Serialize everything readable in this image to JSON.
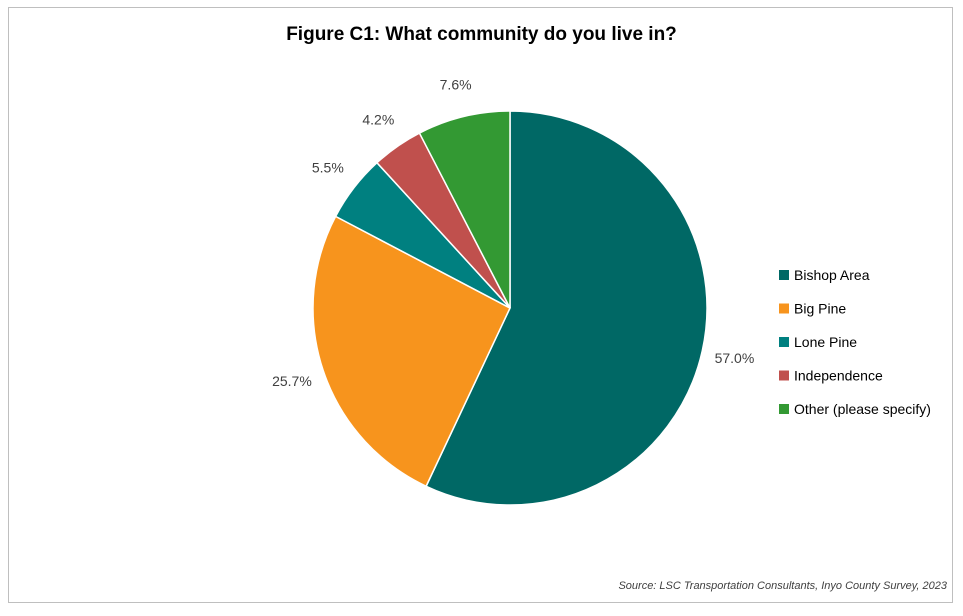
{
  "chart_data": {
    "type": "pie",
    "title": "Figure C1: What community do you live in?",
    "slices": [
      {
        "label": "Bishop Area",
        "value": 57.0,
        "value_label": "57.0%",
        "color": "#006865"
      },
      {
        "label": "Big Pine",
        "value": 25.7,
        "value_label": "25.7%",
        "color": "#f7941d"
      },
      {
        "label": "Lone Pine",
        "value": 5.5,
        "value_label": "5.5%",
        "color": "#008080"
      },
      {
        "label": "Independence",
        "value": 4.2,
        "value_label": "4.2%",
        "color": "#c0504d"
      },
      {
        "label": "Other (please specify)",
        "value": 7.6,
        "value_label": "7.6%",
        "color": "#339933"
      }
    ],
    "legend_position": "right",
    "source": "Source: LSC Transportation Consultants, Inyo County Survey, 2023"
  }
}
